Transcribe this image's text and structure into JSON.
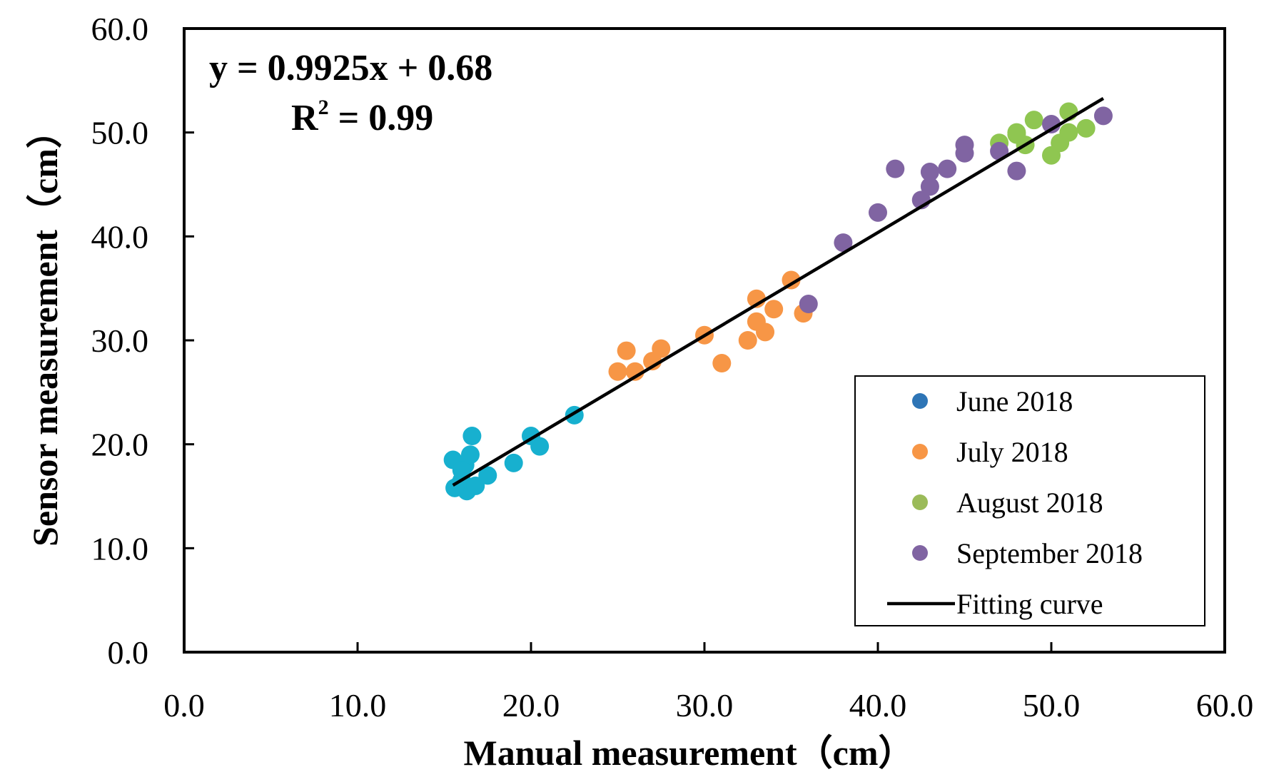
{
  "chart_data": {
    "type": "scatter",
    "title": "",
    "xlabel": "Manual measurement（cm）",
    "ylabel": "Sensor measurement（cm）",
    "xlim": [
      0,
      60
    ],
    "ylim": [
      0,
      60
    ],
    "x_ticks": [
      "0.0",
      "10.0",
      "20.0",
      "30.0",
      "40.0",
      "50.0",
      "60.0"
    ],
    "y_ticks": [
      "0.0",
      "10.0",
      "20.0",
      "30.0",
      "40.0",
      "50.0",
      "60.0"
    ],
    "grid": false,
    "legend_position": "bottom-right",
    "annotations": {
      "equation": "y = 0.9925x + 0.68",
      "r2_prefix": "R",
      "r2_sup": "2",
      "r2_value": " = 0.99"
    },
    "series": [
      {
        "name": "June 2018",
        "marker_color": "#2e75b6",
        "point_color": "#17b0cf",
        "x": [
          15.5,
          15.8,
          16.0,
          16.2,
          16.3,
          16.5,
          16.6,
          16.8,
          17.5,
          19.0,
          20.0,
          20.5,
          22.5,
          16.0,
          15.6
        ],
        "y": [
          18.5,
          16.0,
          16.5,
          18.0,
          15.5,
          19.0,
          20.8,
          16.0,
          17.0,
          18.2,
          20.8,
          19.8,
          22.8,
          17.5,
          15.8
        ]
      },
      {
        "name": "July 2018",
        "marker_color": "#f79646",
        "point_color": "#f79646",
        "x": [
          25.0,
          25.5,
          26.0,
          27.0,
          27.5,
          30.0,
          31.0,
          32.5,
          33.0,
          33.0,
          33.5,
          34.0,
          35.0,
          35.7
        ],
        "y": [
          27.0,
          29.0,
          27.0,
          28.0,
          29.2,
          30.5,
          27.8,
          30.0,
          31.8,
          34.0,
          30.8,
          33.0,
          35.8,
          32.6
        ]
      },
      {
        "name": "August 2018",
        "marker_color": "#9bbb59",
        "point_color": "#8fc651",
        "x": [
          47.0,
          48.0,
          48.5,
          49.0,
          50.0,
          50.5,
          51.0,
          51.0,
          52.0,
          48.0
        ],
        "y": [
          49.0,
          50.0,
          48.8,
          51.2,
          47.8,
          49.0,
          52.0,
          50.0,
          50.4,
          49.8
        ]
      },
      {
        "name": "September 2018",
        "marker_color": "#8064a2",
        "point_color": "#8064a2",
        "x": [
          36.0,
          38.0,
          40.0,
          41.0,
          42.5,
          43.0,
          43.0,
          44.0,
          45.0,
          45.0,
          47.0,
          48.0,
          50.0,
          53.0
        ],
        "y": [
          33.5,
          39.4,
          42.3,
          46.5,
          43.5,
          46.2,
          44.8,
          46.5,
          48.8,
          48.0,
          48.2,
          46.3,
          50.8,
          51.6
        ]
      }
    ],
    "fit_line": {
      "name": "Fitting curve",
      "color": "#000000",
      "x": [
        15.5,
        53.0
      ],
      "y": [
        16.06,
        53.28
      ]
    }
  }
}
